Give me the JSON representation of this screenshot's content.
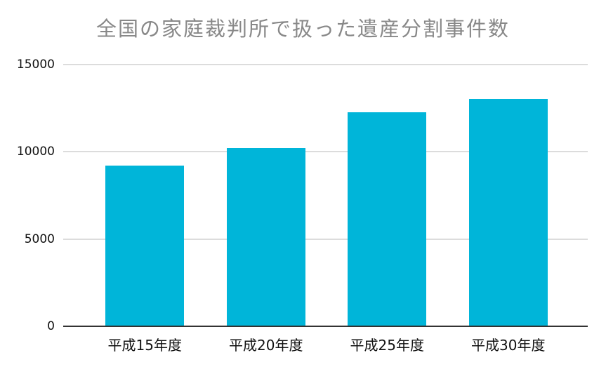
{
  "chart_data": {
    "type": "bar",
    "title": "全国の家庭裁判所で扱った遺産分割事件数",
    "categories": [
      "平成15年度",
      "平成20年度",
      "平成25年度",
      "平成30年度"
    ],
    "values": [
      9200,
      10200,
      12250,
      13050
    ],
    "xlabel": "",
    "ylabel": "",
    "ylim": [
      0,
      15000
    ],
    "yticks": [
      0,
      5000,
      10000,
      15000
    ],
    "grid": true,
    "legend": "none",
    "bar_color": "#00b5d9",
    "title_color": "#888888",
    "axis_text_color": "#111111",
    "gridline_color": "#dcdcdc",
    "baseline_color": "#333333",
    "background": "#ffffff"
  }
}
